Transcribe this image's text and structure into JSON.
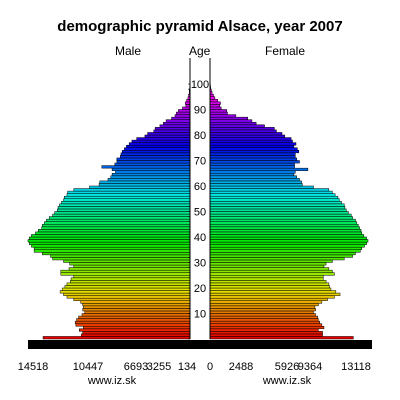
{
  "chart_data": {
    "type": "bar",
    "title": "demographic pyramid Alsace, year 2007",
    "left_label": "Male",
    "center_label": "Age",
    "right_label": "Female",
    "age_ticks": [
      "10",
      "20",
      "30",
      "40",
      "50",
      "60",
      "70",
      "80",
      "90",
      "100"
    ],
    "male_axis_ticks": [
      "14518",
      "10447",
      "6693",
      "3255",
      "134"
    ],
    "female_axis_ticks": [
      "0",
      "2488",
      "5926",
      "9364",
      "13118"
    ],
    "source_left": "www.iz.sk",
    "source_right": "www.iz.sk",
    "ages": [
      0,
      1,
      2,
      3,
      4,
      5,
      6,
      7,
      8,
      9,
      10,
      11,
      12,
      13,
      14,
      15,
      16,
      17,
      18,
      19,
      20,
      21,
      22,
      23,
      24,
      25,
      26,
      27,
      28,
      29,
      30,
      31,
      32,
      33,
      34,
      35,
      36,
      37,
      38,
      39,
      40,
      41,
      42,
      43,
      44,
      45,
      46,
      47,
      48,
      49,
      50,
      51,
      52,
      53,
      54,
      55,
      56,
      57,
      58,
      59,
      60,
      61,
      62,
      63,
      64,
      65,
      66,
      67,
      68,
      69,
      70,
      71,
      72,
      73,
      74,
      75,
      76,
      77,
      78,
      79,
      80,
      81,
      82,
      83,
      84,
      85,
      86,
      87,
      88,
      89,
      90,
      91,
      92,
      93,
      94,
      95,
      96,
      97,
      98,
      99,
      100
    ],
    "male": [
      21500,
      15900,
      15700,
      16200,
      15600,
      16700,
      16800,
      16600,
      16300,
      15800,
      15400,
      15700,
      15600,
      15700,
      16000,
      17000,
      18000,
      18500,
      19000,
      18700,
      18300,
      18000,
      17500,
      17400,
      17000,
      18900,
      18900,
      17700,
      17000,
      17600,
      18500,
      20100,
      20400,
      21600,
      22800,
      22800,
      23200,
      23500,
      23700,
      23500,
      23200,
      22600,
      22200,
      21700,
      21600,
      21300,
      21000,
      20600,
      20100,
      19800,
      19400,
      19300,
      19100,
      18800,
      18500,
      18400,
      18000,
      17900,
      17000,
      14700,
      13300,
      13200,
      12000,
      11600,
      11400,
      10900,
      11400,
      12900,
      11000,
      10700,
      10700,
      10200,
      10100,
      9900,
      9600,
      9300,
      8900,
      8500,
      7800,
      6600,
      6200,
      5300,
      5100,
      4400,
      3900,
      3500,
      2700,
      2200,
      2000,
      1700,
      1100,
      600,
      700,
      500,
      300,
      200,
      100,
      100,
      50,
      30,
      10
    ],
    "female": [
      20500,
      16100,
      16100,
      15500,
      16300,
      16000,
      15700,
      15500,
      15400,
      15100,
      14800,
      15100,
      15000,
      15500,
      16000,
      16800,
      17800,
      18600,
      18000,
      17300,
      17100,
      17000,
      16600,
      16200,
      16200,
      17800,
      17500,
      17000,
      16300,
      16600,
      17500,
      19200,
      20400,
      20800,
      21500,
      21700,
      22100,
      22400,
      22600,
      22400,
      22000,
      21700,
      21600,
      21400,
      21200,
      21000,
      20800,
      20400,
      20200,
      19800,
      19500,
      19300,
      19200,
      18800,
      18500,
      18300,
      17900,
      17500,
      17000,
      14800,
      13200,
      13100,
      12800,
      12400,
      12000,
      12200,
      14000,
      12100,
      12100,
      12800,
      12400,
      12200,
      12200,
      12700,
      12500,
      12000,
      12300,
      11800,
      11600,
      10700,
      10300,
      9500,
      9200,
      7800,
      6600,
      6000,
      5400,
      3700,
      2500,
      2400,
      1600,
      1400,
      1500,
      1100,
      700,
      500,
      300,
      200,
      100,
      60,
      30
    ],
    "colors": {
      "bar_stroke": "#000000",
      "axis_fill": "#000000",
      "background": "#ffffff"
    }
  }
}
